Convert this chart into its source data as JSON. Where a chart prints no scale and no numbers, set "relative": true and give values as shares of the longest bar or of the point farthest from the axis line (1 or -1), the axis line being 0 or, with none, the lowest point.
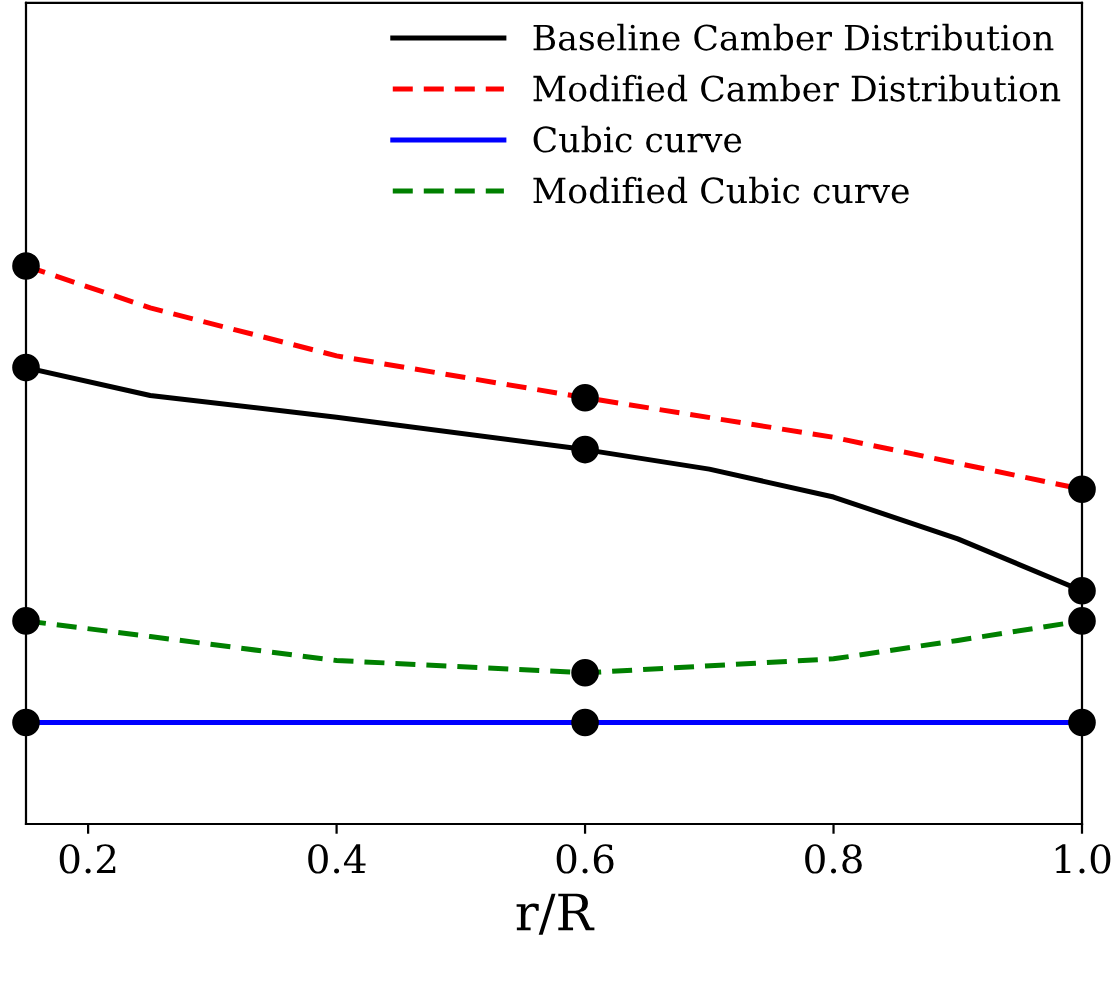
{
  "chart_data": {
    "type": "line",
    "xlabel": "r/R",
    "relative": true,
    "xlim": [
      0.15,
      1.0
    ],
    "xticks": [
      0.2,
      0.4,
      0.6,
      0.8,
      {
        "value": 1.0,
        "label": "1.0"
      }
    ],
    "tick_labels": "x",
    "legend": "top right",
    "grid": false,
    "series": [
      {
        "name": "Baseline Camber Distribution",
        "color": "#000000",
        "line_style": "solid",
        "x": [
          0.15,
          0.25,
          0.4,
          0.6,
          0.7,
          0.8,
          0.9,
          1.0
        ],
        "values": [
          0.818,
          0.768,
          0.729,
          0.671,
          0.636,
          0.586,
          0.511,
          0.418
        ]
      },
      {
        "name": "Modified Camber Distribution",
        "color": "#ff0000",
        "line_style": "dashed",
        "x": [
          0.15,
          0.25,
          0.4,
          0.6,
          0.8,
          1.0
        ],
        "values": [
          1.0,
          0.925,
          0.839,
          0.764,
          0.693,
          0.6
        ]
      },
      {
        "name": "Cubic curve",
        "color": "#0000ff",
        "line_style": "solid",
        "x": [
          0.15,
          0.6,
          1.0
        ],
        "values": [
          0.182,
          0.182,
          0.182
        ]
      },
      {
        "name": "Modified Cubic curve",
        "color": "#008000",
        "line_style": "dashed",
        "x": [
          0.15,
          0.25,
          0.4,
          0.6,
          0.8,
          0.9,
          1.0
        ],
        "values": [
          0.364,
          0.336,
          0.293,
          0.271,
          0.296,
          0.329,
          0.364
        ]
      },
      {
        "type": "scatter",
        "color": "#000000",
        "marker": "circle",
        "x": [
          0.15,
          0.6,
          1.0
        ],
        "values": [
          0.818,
          0.671,
          0.418
        ]
      },
      {
        "type": "scatter",
        "color": "#000000",
        "marker": "circle",
        "x": [
          0.15,
          0.6,
          1.0
        ],
        "values": [
          1.0,
          0.764,
          0.6
        ]
      },
      {
        "type": "scatter",
        "color": "#000000",
        "marker": "circle",
        "x": [
          0.15,
          0.6,
          1.0
        ],
        "values": [
          0.182,
          0.182,
          0.182
        ]
      },
      {
        "type": "scatter",
        "color": "#000000",
        "marker": "circle",
        "x": [
          0.15,
          0.6,
          1.0
        ],
        "values": [
          0.364,
          0.271,
          0.364
        ]
      }
    ]
  }
}
